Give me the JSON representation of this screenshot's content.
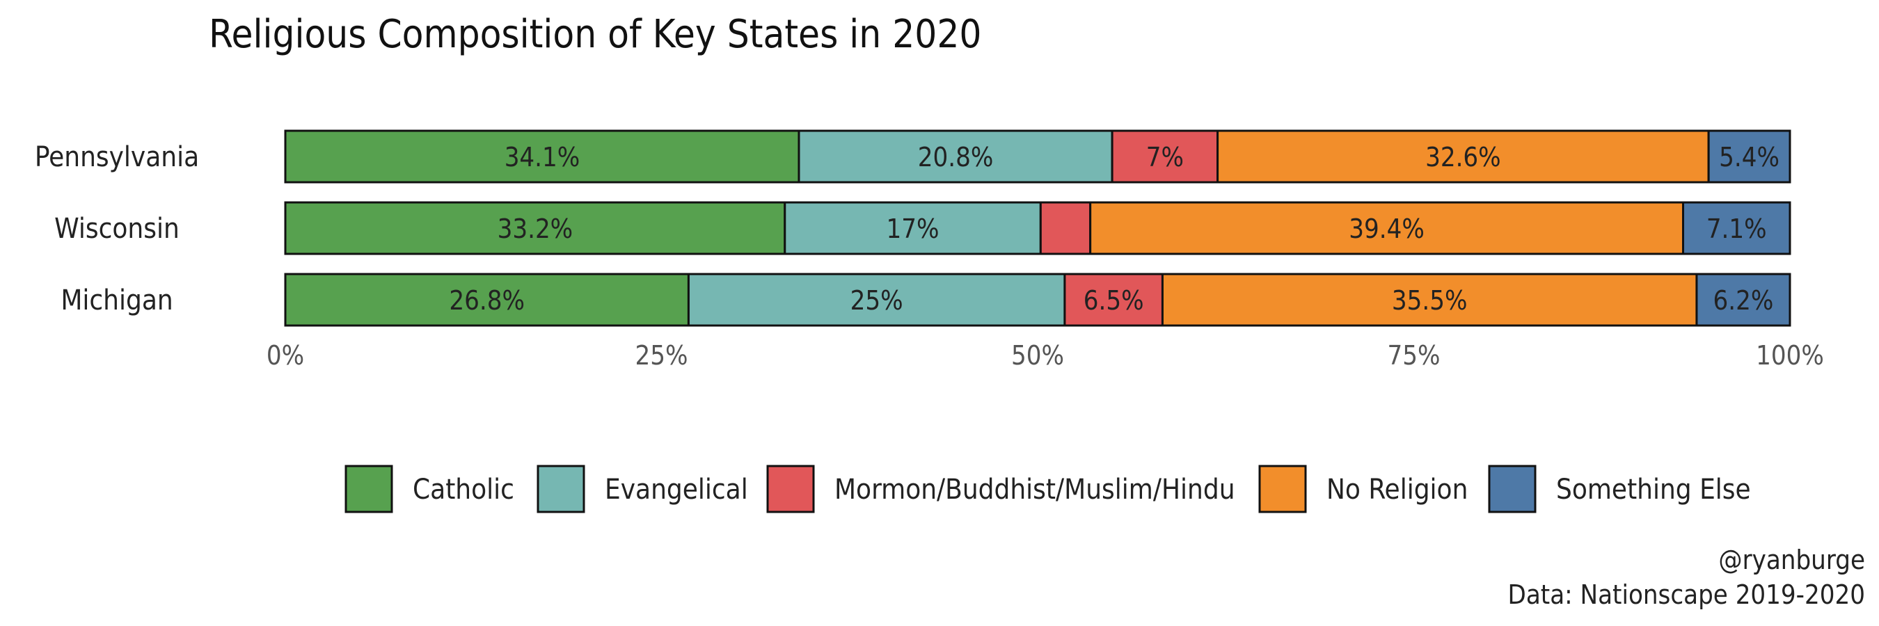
{
  "chart_data": {
    "type": "bar",
    "orientation": "horizontal",
    "stacked": true,
    "title": "Religious Composition of Key States in 2020",
    "categories": [
      "Pennsylvania",
      "Wisconsin",
      "Michigan"
    ],
    "series": [
      {
        "name": "Catholic",
        "color": "#57A14F",
        "values": [
          34.1,
          33.2,
          26.8
        ],
        "labels": [
          "34.1%",
          "33.2%",
          "26.8%"
        ]
      },
      {
        "name": "Evangelical",
        "color": "#76B7B2",
        "values": [
          20.8,
          17,
          25
        ],
        "labels": [
          "20.8%",
          "17%",
          "25%"
        ]
      },
      {
        "name": "Mormon/Buddhist/Muslim/Hindu",
        "color": "#E15759",
        "values": [
          7,
          3.3,
          6.5
        ],
        "labels": [
          "7%",
          "",
          "6.5%"
        ]
      },
      {
        "name": "No Religion",
        "color": "#F28E2B",
        "values": [
          32.6,
          39.4,
          35.5
        ],
        "labels": [
          "32.6%",
          "39.4%",
          "35.5%"
        ]
      },
      {
        "name": "Something Else",
        "color": "#4E79A7",
        "values": [
          5.4,
          7.1,
          6.2
        ],
        "labels": [
          "5.4%",
          "7.1%",
          "6.2%"
        ]
      }
    ],
    "xlim": [
      0,
      100
    ],
    "xticks": [
      0,
      25,
      50,
      75,
      100
    ],
    "xtick_labels": [
      "0%",
      "25%",
      "50%",
      "75%",
      "100%"
    ],
    "xlabel": "",
    "ylabel": "",
    "grid": false,
    "legend_position": "bottom"
  },
  "caption": {
    "handle": "@ryanburge",
    "source": "Data: Nationscape 2019-2020"
  }
}
